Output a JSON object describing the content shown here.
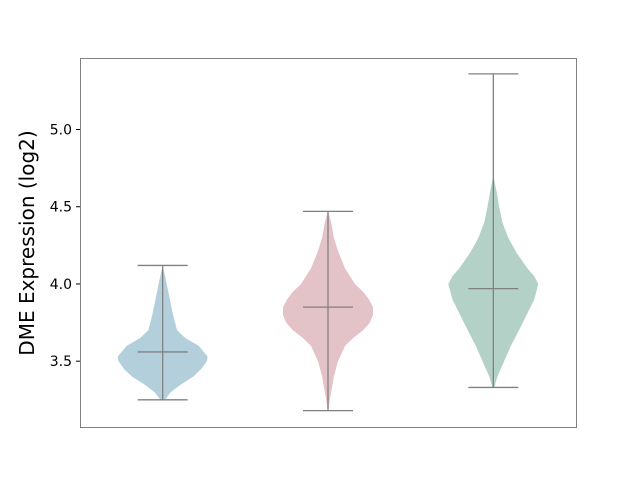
{
  "chart_data": {
    "type": "violin",
    "title": "",
    "xlabel": "",
    "ylabel": "DME Expression (log2)",
    "ylim": [
      3.074,
      5.463
    ],
    "yticks": [
      3.5,
      4.0,
      4.5,
      5.0
    ],
    "ytick_labels": [
      "3.5",
      "4.0",
      "4.5",
      "5.0"
    ],
    "grid": false,
    "series": [
      {
        "color": "#b3cfdc",
        "min": 3.25,
        "median": 3.56,
        "max": 4.12,
        "density": [
          [
            3.25,
            0.05
          ],
          [
            3.3,
            0.18
          ],
          [
            3.35,
            0.41
          ],
          [
            3.4,
            0.68
          ],
          [
            3.45,
            0.86
          ],
          [
            3.5,
            0.98
          ],
          [
            3.53,
            1.0
          ],
          [
            3.6,
            0.8
          ],
          [
            3.65,
            0.5
          ],
          [
            3.7,
            0.32
          ],
          [
            3.8,
            0.23
          ],
          [
            3.9,
            0.16
          ],
          [
            4.0,
            0.09
          ],
          [
            4.12,
            0.0
          ]
        ]
      },
      {
        "color": "#e3c2c8",
        "min": 3.18,
        "median": 3.85,
        "max": 4.47,
        "density": [
          [
            3.18,
            0.0
          ],
          [
            3.3,
            0.07
          ],
          [
            3.4,
            0.13
          ],
          [
            3.5,
            0.22
          ],
          [
            3.6,
            0.38
          ],
          [
            3.65,
            0.56
          ],
          [
            3.7,
            0.78
          ],
          [
            3.75,
            0.93
          ],
          [
            3.8,
            1.0
          ],
          [
            3.85,
            1.0
          ],
          [
            3.9,
            0.91
          ],
          [
            3.95,
            0.78
          ],
          [
            4.0,
            0.6
          ],
          [
            4.1,
            0.38
          ],
          [
            4.2,
            0.24
          ],
          [
            4.3,
            0.13
          ],
          [
            4.4,
            0.07
          ],
          [
            4.47,
            0.0
          ]
        ]
      },
      {
        "color": "#b3d1c6",
        "min": 3.33,
        "median": 3.97,
        "max": 5.36,
        "density": [
          [
            3.33,
            0.02
          ],
          [
            3.4,
            0.09
          ],
          [
            3.5,
            0.24
          ],
          [
            3.6,
            0.39
          ],
          [
            3.7,
            0.57
          ],
          [
            3.8,
            0.74
          ],
          [
            3.9,
            0.91
          ],
          [
            4.0,
            1.0
          ],
          [
            4.05,
            0.91
          ],
          [
            4.1,
            0.76
          ],
          [
            4.2,
            0.52
          ],
          [
            4.3,
            0.33
          ],
          [
            4.4,
            0.2
          ],
          [
            4.5,
            0.13
          ],
          [
            4.6,
            0.07
          ],
          [
            4.7,
            0.0
          ]
        ]
      }
    ],
    "line_color": "#808080"
  }
}
